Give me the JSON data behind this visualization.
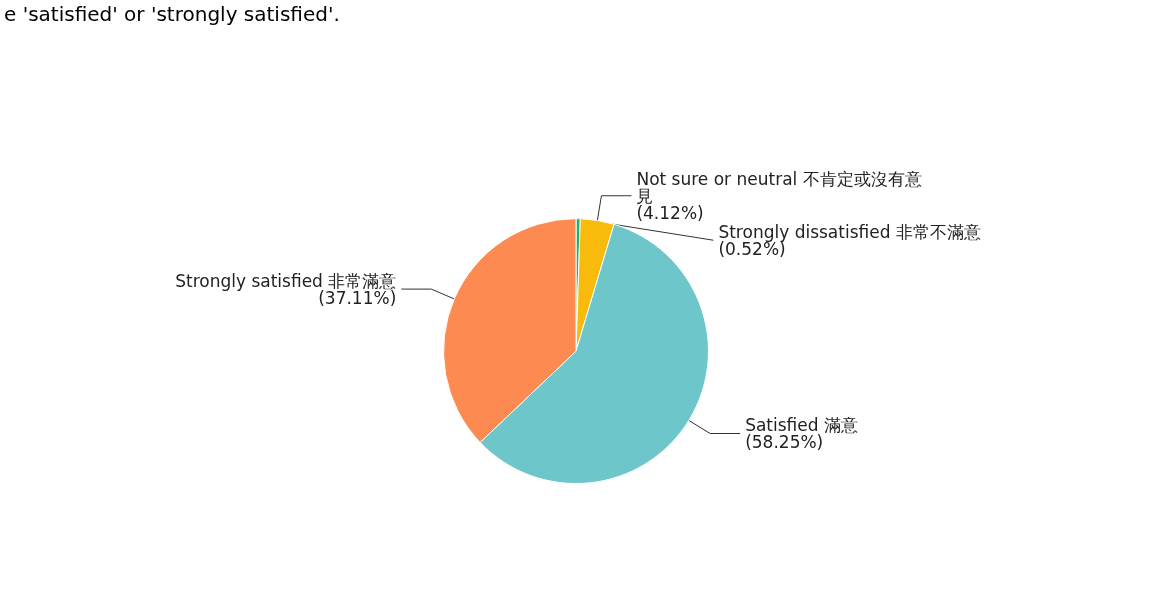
{
  "chart_data": {
    "type": "pie",
    "categories": [
      "Strongly dissatisfied 非常不滿意",
      "Not sure or neutral 不肯定或沒有意見",
      "Satisfied 滿意",
      "Strongly satisfied 非常滿意"
    ],
    "values": [
      0.52,
      4.12,
      58.25,
      37.11
    ],
    "colors": [
      "#1db36b",
      "#f8bb0b",
      "#6cc6ca",
      "#fd8a51"
    ],
    "value_labels": [
      "(0.52%)",
      "(4.12%)",
      "(58.25%)",
      "(37.11%)"
    ],
    "annotations": [
      "e 'satisfied' or 'strongly satisfied'."
    ],
    "legend": false
  }
}
